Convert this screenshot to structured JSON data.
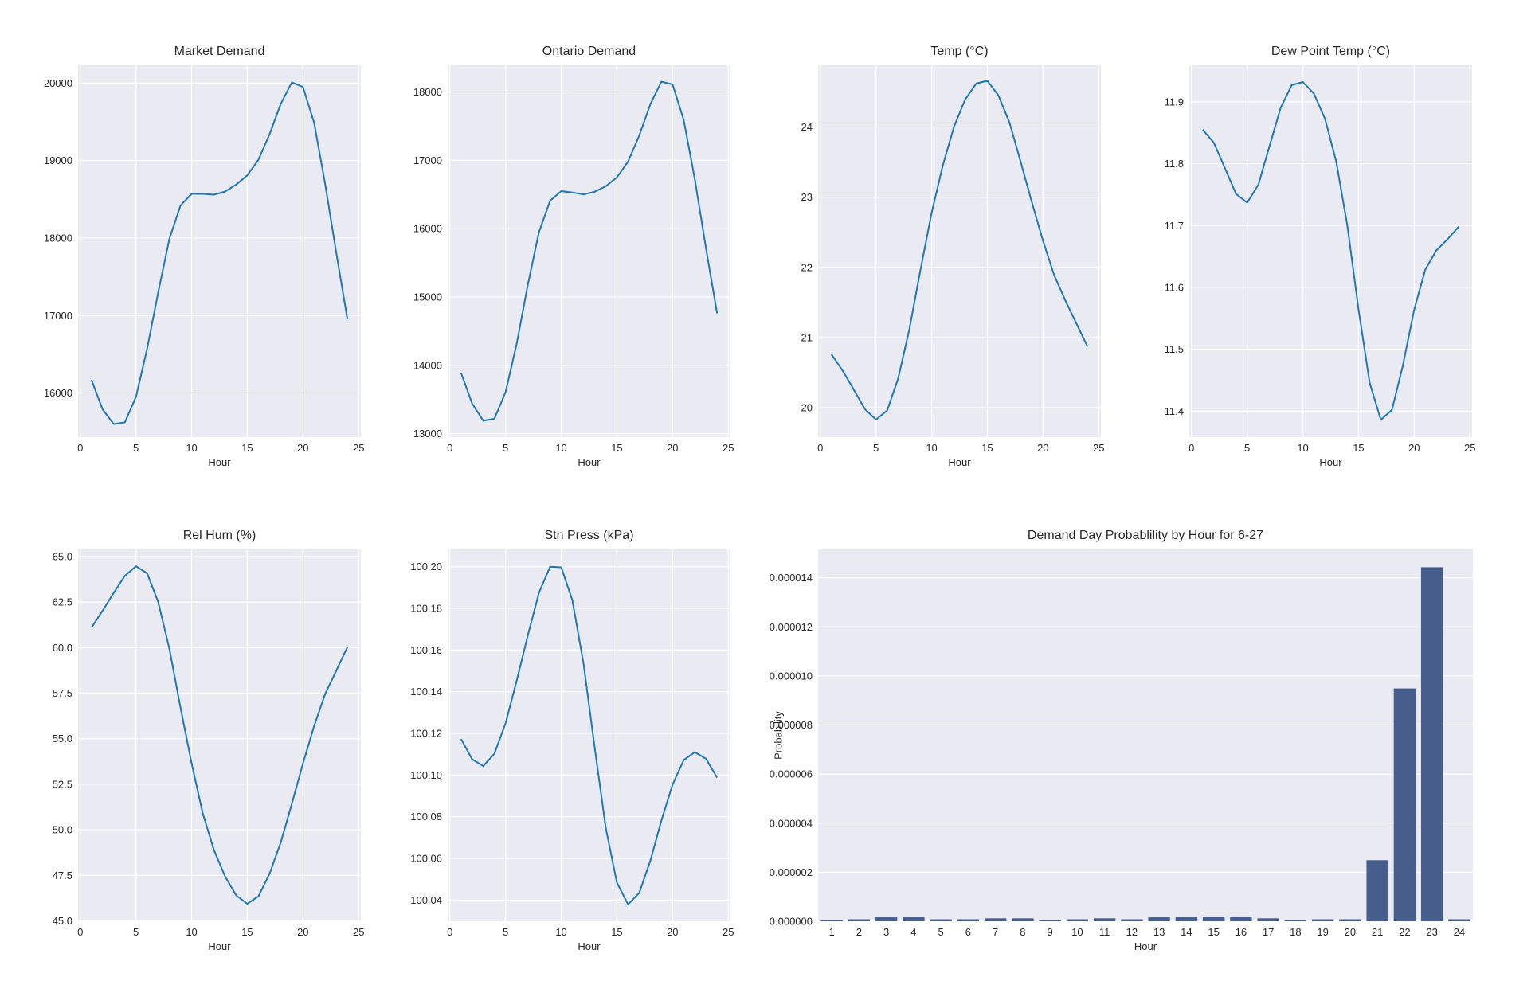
{
  "figure": {
    "line_color": "#1f77b4",
    "bar_color": "#475d8c",
    "axes_bg": "#eaeaf2",
    "grid_color": "#ffffff"
  },
  "chart_data": [
    {
      "id": "market-demand",
      "type": "line",
      "title": "Market Demand",
      "xlabel": "Hour",
      "ylabel": "",
      "x": [
        1,
        2,
        3,
        4,
        5,
        6,
        7,
        8,
        9,
        10,
        11,
        12,
        13,
        14,
        15,
        16,
        17,
        18,
        19,
        20,
        21,
        22,
        23,
        24
      ],
      "values": [
        16170,
        15790,
        15600,
        15620,
        15950,
        16570,
        17300,
        17990,
        18420,
        18570,
        18570,
        18560,
        18600,
        18690,
        18810,
        19010,
        19340,
        19730,
        20010,
        19950,
        19490,
        18690,
        17800,
        16950
      ],
      "xlim": [
        -0.2,
        25.2
      ],
      "ylim": [
        15430,
        20230
      ],
      "xticks": [
        0,
        5,
        10,
        15,
        20,
        25
      ],
      "yticks": [
        16000,
        17000,
        18000,
        19000,
        20000
      ],
      "ytick_labels": [
        "16000",
        "17000",
        "18000",
        "19000",
        "20000"
      ],
      "grid": true
    },
    {
      "id": "ontario-demand",
      "type": "line",
      "title": "Ontario Demand",
      "xlabel": "Hour",
      "ylabel": "",
      "x": [
        1,
        2,
        3,
        4,
        5,
        6,
        7,
        8,
        9,
        10,
        11,
        12,
        13,
        14,
        15,
        16,
        17,
        18,
        19,
        20,
        21,
        22,
        23,
        24
      ],
      "values": [
        13890,
        13440,
        13190,
        13220,
        13610,
        14320,
        15180,
        15950,
        16410,
        16550,
        16530,
        16500,
        16540,
        16620,
        16750,
        16980,
        17360,
        17820,
        18150,
        18110,
        17590,
        16720,
        15710,
        14760
      ],
      "xlim": [
        -0.2,
        25.2
      ],
      "ylim": [
        12950,
        18390
      ],
      "xticks": [
        0,
        5,
        10,
        15,
        20,
        25
      ],
      "yticks": [
        13000,
        14000,
        15000,
        16000,
        17000,
        18000
      ],
      "ytick_labels": [
        "13000",
        "14000",
        "15000",
        "16000",
        "17000",
        "18000"
      ],
      "grid": true
    },
    {
      "id": "temp",
      "type": "line",
      "title": "Temp (°C)",
      "xlabel": "Hour",
      "ylabel": "",
      "x": [
        1,
        2,
        3,
        4,
        5,
        6,
        7,
        8,
        9,
        10,
        11,
        12,
        13,
        14,
        15,
        16,
        17,
        18,
        19,
        20,
        21,
        22,
        23,
        24
      ],
      "values": [
        20.76,
        20.53,
        20.26,
        19.98,
        19.83,
        19.96,
        20.42,
        21.12,
        21.97,
        22.78,
        23.45,
        24.0,
        24.39,
        24.62,
        24.66,
        24.45,
        24.06,
        23.5,
        22.93,
        22.38,
        21.89,
        21.53,
        21.2,
        20.87
      ],
      "xlim": [
        -0.2,
        25.2
      ],
      "ylim": [
        19.58,
        24.88
      ],
      "xticks": [
        0,
        5,
        10,
        15,
        20,
        25
      ],
      "yticks": [
        20,
        21,
        22,
        23,
        24
      ],
      "ytick_labels": [
        "20",
        "21",
        "22",
        "23",
        "24"
      ],
      "grid": true
    },
    {
      "id": "dew-point-temp",
      "type": "line",
      "title": "Dew Point Temp (°C)",
      "xlabel": "Hour",
      "ylabel": "",
      "x": [
        1,
        2,
        3,
        4,
        5,
        6,
        7,
        8,
        9,
        10,
        11,
        12,
        13,
        14,
        15,
        16,
        17,
        18,
        19,
        20,
        21,
        22,
        23,
        24
      ],
      "values": [
        11.855,
        11.834,
        11.793,
        11.751,
        11.737,
        11.766,
        11.828,
        11.89,
        11.927,
        11.932,
        11.913,
        11.872,
        11.803,
        11.699,
        11.565,
        11.446,
        11.386,
        11.402,
        11.475,
        11.564,
        11.629,
        11.66,
        11.678,
        11.698
      ],
      "xlim": [
        -0.2,
        25.2
      ],
      "ylim": [
        11.358,
        11.959
      ],
      "xticks": [
        0,
        5,
        10,
        15,
        20,
        25
      ],
      "yticks": [
        11.4,
        11.5,
        11.6,
        11.7,
        11.8,
        11.9
      ],
      "ytick_labels": [
        "11.4",
        "11.5",
        "11.6",
        "11.7",
        "11.8",
        "11.9"
      ],
      "grid": true
    },
    {
      "id": "rel-hum",
      "type": "line",
      "title": "Rel Hum (%)",
      "xlabel": "Hour",
      "ylabel": "",
      "x": [
        1,
        2,
        3,
        4,
        5,
        6,
        7,
        8,
        9,
        10,
        11,
        12,
        13,
        14,
        15,
        16,
        17,
        18,
        19,
        20,
        21,
        22,
        23,
        24
      ],
      "values": [
        61.1,
        62.02,
        63.0,
        63.94,
        64.47,
        64.08,
        62.5,
        59.94,
        56.7,
        53.64,
        50.91,
        48.9,
        47.45,
        46.4,
        45.94,
        46.35,
        47.59,
        49.3,
        51.42,
        53.64,
        55.69,
        57.47,
        58.75,
        60.03
      ],
      "xlim": [
        -0.2,
        25.2
      ],
      "ylim": [
        44.98,
        65.39
      ],
      "xticks": [
        0,
        5,
        10,
        15,
        20,
        25
      ],
      "yticks": [
        45.0,
        47.5,
        50.0,
        52.5,
        55.0,
        57.5,
        60.0,
        62.5,
        65.0
      ],
      "ytick_labels": [
        "45.0",
        "47.5",
        "50.0",
        "52.5",
        "55.0",
        "57.5",
        "60.0",
        "62.5",
        "65.0"
      ],
      "grid": true
    },
    {
      "id": "stn-press",
      "type": "line",
      "title": "Stn Press (kPa)",
      "xlabel": "Hour",
      "ylabel": "",
      "x": [
        1,
        2,
        3,
        4,
        5,
        6,
        7,
        8,
        9,
        10,
        11,
        12,
        13,
        14,
        15,
        16,
        17,
        18,
        19,
        20,
        21,
        22,
        23,
        24
      ],
      "values": [
        100.1173,
        100.1076,
        100.1043,
        100.1103,
        100.1249,
        100.1454,
        100.167,
        100.1875,
        100.2,
        100.1997,
        100.1839,
        100.1536,
        100.1133,
        100.0745,
        100.0484,
        100.0379,
        100.0434,
        100.0588,
        100.0782,
        100.0954,
        100.1072,
        100.111,
        100.1078,
        100.0988
      ],
      "xlim": [
        -0.2,
        25.2
      ],
      "ylim": [
        100.0298,
        100.2083
      ],
      "xticks": [
        0,
        5,
        10,
        15,
        20,
        25
      ],
      "yticks": [
        100.04,
        100.06,
        100.08,
        100.1,
        100.12,
        100.14,
        100.16,
        100.18,
        100.2
      ],
      "ytick_labels": [
        "100.04",
        "100.06",
        "100.08",
        "100.10",
        "100.12",
        "100.14",
        "100.16",
        "100.18",
        "100.20"
      ],
      "grid": true
    },
    {
      "id": "demand-day-probability",
      "type": "bar",
      "title": "Demand Day Probablility by Hour for 6-27",
      "xlabel": "Hour",
      "ylabel": "Probability",
      "categories": [
        "1",
        "2",
        "3",
        "4",
        "5",
        "6",
        "7",
        "8",
        "9",
        "10",
        "11",
        "12",
        "13",
        "14",
        "15",
        "16",
        "17",
        "18",
        "19",
        "20",
        "21",
        "22",
        "23",
        "24"
      ],
      "values": [
        5e-08,
        8e-08,
        1.6e-07,
        1.6e-07,
        8e-08,
        8e-08,
        1.2e-07,
        1.2e-07,
        5e-08,
        8e-08,
        1.2e-07,
        8e-08,
        1.6e-07,
        1.6e-07,
        1.8e-07,
        1.8e-07,
        1.2e-07,
        5e-08,
        8e-08,
        8e-08,
        2.49e-06,
        9.49e-06,
        1.443e-05,
        8e-08
      ],
      "ylim": [
        0,
        1.5157e-05
      ],
      "yticks": [
        0,
        2e-06,
        4e-06,
        6e-06,
        8e-06,
        1e-05,
        1.2e-05,
        1.4e-05
      ],
      "ytick_labels": [
        "0.000000",
        "0.000002",
        "0.000004",
        "0.000006",
        "0.000008",
        "0.000010",
        "0.000012",
        "0.000014"
      ],
      "grid": true
    }
  ]
}
